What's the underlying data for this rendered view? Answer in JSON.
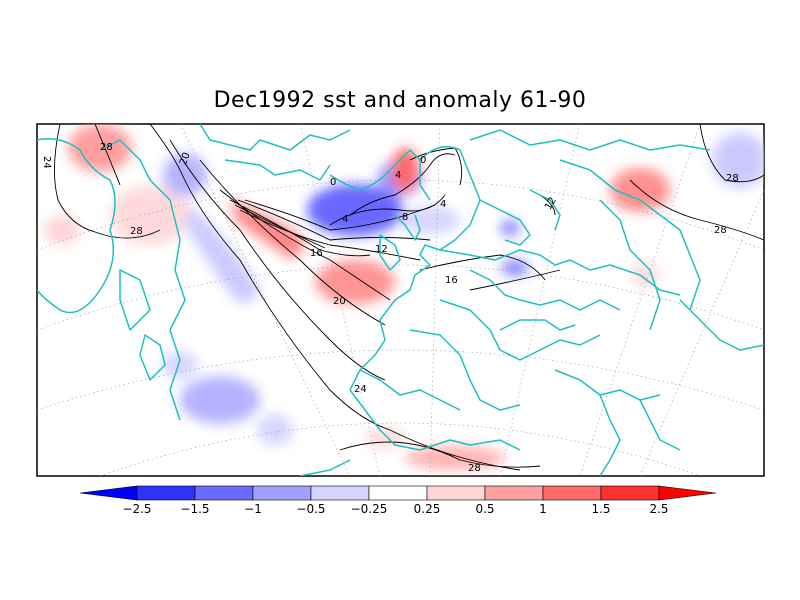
{
  "title": "Dec1992 sst and anomaly 61-90",
  "contour_labels": [
    "24",
    "28",
    "20",
    "0",
    "4",
    "8",
    "4",
    "12",
    "16",
    "20",
    "16",
    "24",
    "28",
    "28",
    "28",
    "12"
  ],
  "colorbar": {
    "ticks": [
      "−2.5",
      "−1.5",
      "−1",
      "−0.5",
      "−0.25",
      "0.25",
      "0.5",
      "1",
      "1.5",
      "2.5"
    ],
    "colors": [
      "#0000ff",
      "#3030ff",
      "#6a6aff",
      "#a0a0ff",
      "#d4d4ff",
      "#ffffff",
      "#ffd4d4",
      "#ffa0a0",
      "#ff6a6a",
      "#ff3030",
      "#ff0000"
    ]
  },
  "coastline_color": "#1fbfbf",
  "contour_color": "#000000"
}
